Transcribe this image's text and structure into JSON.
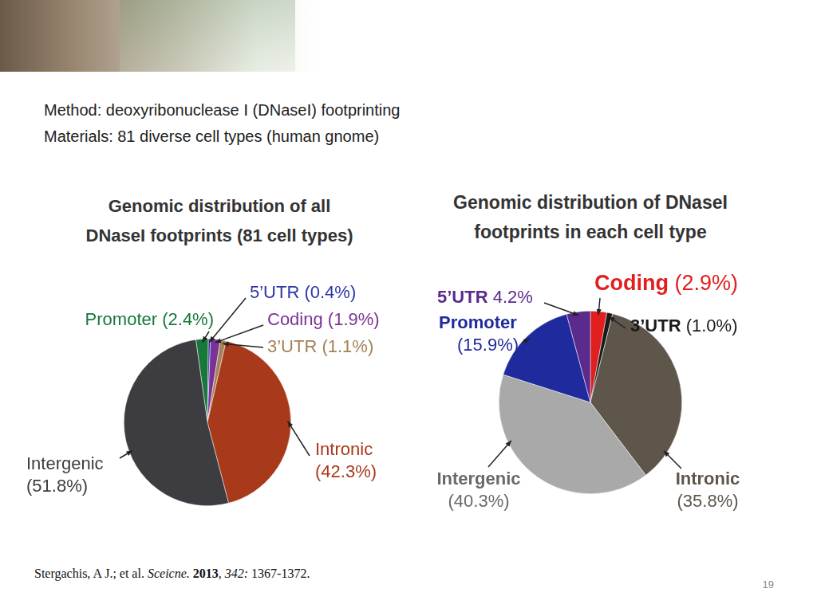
{
  "header": {
    "method": "Method: deoxyribonuclease Ⅰ (DNaseⅠ) footprinting",
    "materials": "Materials: 81 diverse cell types (human gnome)"
  },
  "chart_data": [
    {
      "type": "pie",
      "title": "Genomic distribution of all\nDNaseI footprints (81 cell types)",
      "categories": [
        "Promoter",
        "5’UTR",
        "Coding",
        "3’UTR",
        "Intronic",
        "Intergenic"
      ],
      "values": [
        2.4,
        0.4,
        1.9,
        1.1,
        42.3,
        51.8
      ],
      "value_labels": [
        "(2.4%)",
        "(0.4%)",
        "(1.9%)",
        "(1.1%)",
        "(42.3%)",
        "(51.8%)"
      ],
      "colors": [
        "#17783a",
        "#2e36a4",
        "#7b3296",
        "#a68058",
        "#a8391a",
        "#3d3d41"
      ],
      "data_labels": true
    },
    {
      "type": "pie",
      "title": "Genomic distribution of DNaseI\nfootprints in each cell type",
      "categories": [
        "Coding",
        "3’UTR",
        "Intronic",
        "Intergenic",
        "Promoter",
        "5’UTR"
      ],
      "values": [
        2.9,
        1.0,
        35.8,
        40.3,
        15.9,
        4.2
      ],
      "value_labels": [
        "(2.9%)",
        "(1.0%)",
        "(35.8%)",
        "(40.3%)",
        "(15.9%)",
        "4.2%"
      ],
      "colors": [
        "#e21f1f",
        "#1a1a1a",
        "#5e554b",
        "#a9a9a9",
        "#1f2a9c",
        "#5a2a8c"
      ],
      "data_labels": true
    }
  ],
  "citation": [
    {
      "text": "Stergachis, A J.; et al. ",
      "format": "normal"
    },
    {
      "text": "Sceicne.",
      "format": "italic"
    },
    {
      "text": " ",
      "format": "normal"
    },
    {
      "text": "2013",
      "format": "bold"
    },
    {
      "text": ", ",
      "format": "normal"
    },
    {
      "text": "342:",
      "format": "italic"
    },
    {
      "text": " 1367-1372.",
      "format": "normal"
    }
  ],
  "page_number": 19
}
